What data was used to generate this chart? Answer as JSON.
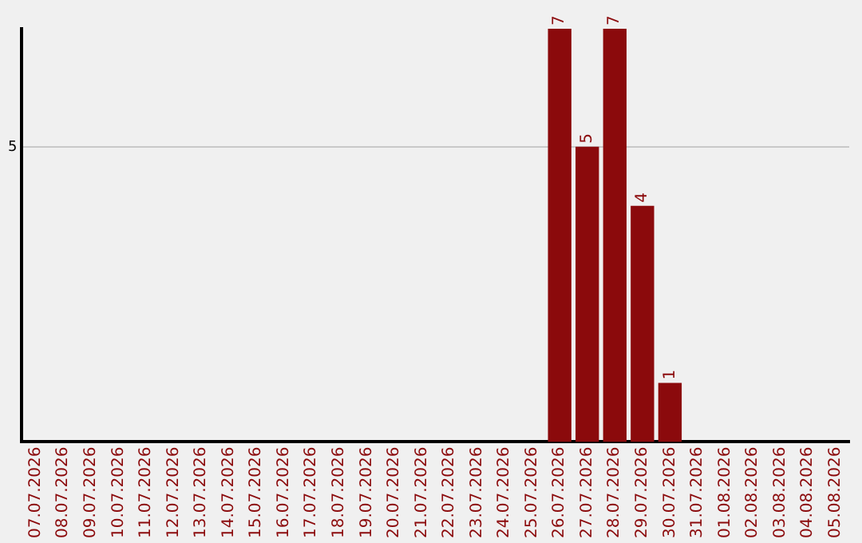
{
  "chart_data": {
    "type": "bar",
    "categories": [
      "07.07.2026",
      "08.07.2026",
      "09.07.2026",
      "10.07.2026",
      "11.07.2026",
      "12.07.2026",
      "13.07.2026",
      "14.07.2026",
      "15.07.2026",
      "16.07.2026",
      "17.07.2026",
      "18.07.2026",
      "19.07.2026",
      "20.07.2026",
      "21.07.2026",
      "22.07.2026",
      "23.07.2026",
      "24.07.2026",
      "25.07.2026",
      "26.07.2026",
      "27.07.2026",
      "28.07.2026",
      "29.07.2026",
      "30.07.2026",
      "31.07.2026",
      "01.08.2026",
      "02.08.2026",
      "03.08.2026",
      "04.08.2026",
      "05.08.2026"
    ],
    "values": [
      null,
      null,
      null,
      null,
      null,
      null,
      null,
      null,
      null,
      null,
      null,
      null,
      null,
      null,
      null,
      null,
      null,
      null,
      null,
      7,
      5,
      7,
      4,
      1,
      null,
      null,
      null,
      null,
      null,
      null
    ],
    "color": "#8b0a0c",
    "ylim": [
      0,
      7
    ],
    "yticks": [
      5
    ],
    "grid": "y",
    "data_labels": true,
    "legend": false
  }
}
